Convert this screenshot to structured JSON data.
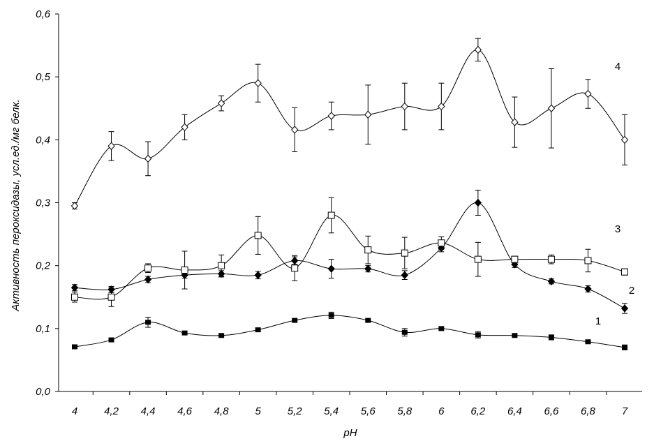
{
  "chart_data": {
    "type": "line",
    "title": "",
    "xlabel": "pH",
    "ylabel": "Активность пероксидазы, усл.ед./мг белк.",
    "x": [
      4,
      4.2,
      4.4,
      4.6,
      4.8,
      5,
      5.2,
      5.4,
      5.6,
      5.8,
      6,
      6.2,
      6.4,
      6.6,
      6.8,
      7
    ],
    "x_tick_labels": [
      "4",
      "4,2",
      "4,4",
      "4,6",
      "4,8",
      "5",
      "5,2",
      "5,4",
      "5,6",
      "5,8",
      "6",
      "6,2",
      "6,4",
      "6,6",
      "6,8",
      "7"
    ],
    "y_tick_values": [
      0,
      0.1,
      0.2,
      0.3,
      0.4,
      0.5,
      0.6
    ],
    "y_tick_labels": [
      "0,0",
      "0,1",
      "0,2",
      "0,3",
      "0,4",
      "0,5",
      "0,6"
    ],
    "ylim": [
      0,
      0.6
    ],
    "grid": false,
    "legend": "none",
    "series": [
      {
        "label": "1",
        "marker": "filled-square",
        "values": [
          0.071,
          0.082,
          0.11,
          0.093,
          0.089,
          0.098,
          0.113,
          0.121,
          0.113,
          0.094,
          0.1,
          0.09,
          0.089,
          0.086,
          0.079,
          0.07
        ],
        "errors": [
          0,
          0,
          0.008,
          0,
          0,
          0,
          0,
          0.005,
          0,
          0.006,
          0,
          0.005,
          0,
          0.004,
          0,
          0.004
        ]
      },
      {
        "label": "2",
        "marker": "filled-diamond",
        "values": [
          0.165,
          0.162,
          0.178,
          0.185,
          0.187,
          0.185,
          0.208,
          0.195,
          0.195,
          0.185,
          0.228,
          0.3,
          0.202,
          0.175,
          0.163,
          0.132
        ],
        "errors": [
          0.005,
          0.005,
          0.005,
          0.005,
          0.005,
          0.006,
          0.006,
          0.015,
          0.005,
          0.007,
          0.006,
          0.02,
          0.005,
          0.004,
          0.005,
          0.008
        ]
      },
      {
        "label": "3",
        "marker": "open-square",
        "values": [
          0.15,
          0.15,
          0.196,
          0.193,
          0.2,
          0.248,
          0.196,
          0.28,
          0.225,
          0.22,
          0.236,
          0.21,
          0.21,
          0.21,
          0.208,
          0.19
        ],
        "errors": [
          0.008,
          0.015,
          0.007,
          0.03,
          0.017,
          0.03,
          0.02,
          0.028,
          0.022,
          0.025,
          0.01,
          0.027,
          0.005,
          0.007,
          0.018,
          0.005
        ]
      },
      {
        "label": "4",
        "marker": "open-diamond",
        "values": [
          0.295,
          0.39,
          0.37,
          0.42,
          0.458,
          0.49,
          0.416,
          0.438,
          0.44,
          0.453,
          0.453,
          0.543,
          0.428,
          0.45,
          0.473,
          0.4
        ],
        "errors": [
          0.005,
          0.023,
          0.027,
          0.02,
          0.012,
          0.03,
          0.035,
          0.022,
          0.047,
          0.037,
          0.037,
          0.018,
          0.04,
          0.063,
          0.023,
          0.04
        ]
      }
    ]
  }
}
